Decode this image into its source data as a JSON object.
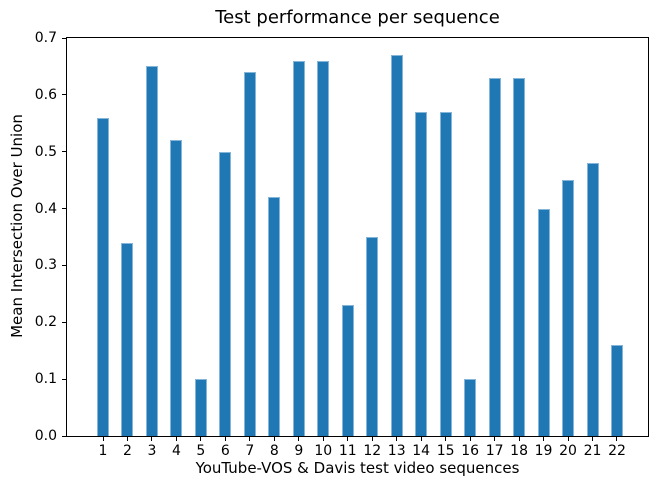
{
  "chart_data": {
    "type": "bar",
    "title": "Test performance per sequence",
    "xlabel": "YouTube-VOS & Davis test video sequences",
    "ylabel": "Mean Intersection Over Union",
    "categories": [
      "1",
      "2",
      "3",
      "4",
      "5",
      "6",
      "7",
      "8",
      "9",
      "10",
      "11",
      "12",
      "13",
      "14",
      "15",
      "16",
      "17",
      "18",
      "19",
      "20",
      "21",
      "22"
    ],
    "values": [
      0.56,
      0.34,
      0.65,
      0.52,
      0.1,
      0.5,
      0.64,
      0.42,
      0.66,
      0.66,
      0.23,
      0.35,
      0.67,
      0.57,
      0.57,
      0.1,
      0.63,
      0.63,
      0.4,
      0.45,
      0.48,
      0.16
    ],
    "ylim": [
      0.0,
      0.7
    ],
    "yticks": [
      "0.0",
      "0.1",
      "0.2",
      "0.3",
      "0.4",
      "0.5",
      "0.6",
      "0.7"
    ],
    "grid": false,
    "legend_position": "none",
    "bar_color": "#1f77b4",
    "bar_edge_color": "#85b5d9",
    "axis_color": "#000000",
    "background_color": "#ffffff"
  }
}
